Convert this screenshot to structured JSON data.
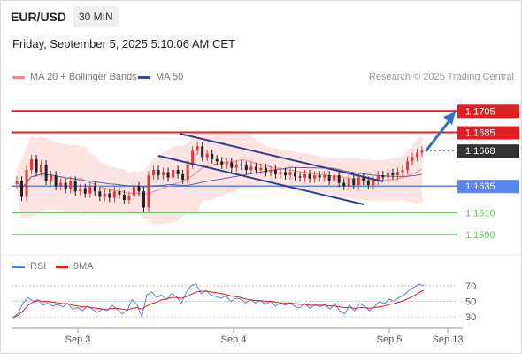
{
  "header": {
    "symbol": "EUR/USD",
    "timeframe": "30 MIN",
    "datetime": "Friday, September 5, 2025 5:10:06 AM CET"
  },
  "legend": {
    "ma20_label": "MA 20 + Bollinger Bands",
    "ma50_label": "MA 50",
    "credit": "Research © 2025 Trading Central",
    "rsi_label": "RSI",
    "rsi_ma_label": "9MA"
  },
  "colors": {
    "ma20": "#f28b82",
    "bb_fill": "#fde3e1",
    "ma50": "#3b4a9c",
    "resistance": "#e02020",
    "support": "#5b86f0",
    "pivot": "#6abf69",
    "candle_up": "#e03a3a",
    "candle_down": "#222222",
    "rsi": "#5b7fe0",
    "rsi_ma": "#e02020",
    "last_price_bg": "#333333",
    "arrow": "#2f6fd0",
    "channel": "#2d3f8f"
  },
  "chart_data": {
    "type": "candlestick",
    "price_axis": {
      "min": 1.1575,
      "max": 1.1725
    },
    "x_axis_labels": [
      "Sep 3",
      "Sep 4",
      "Sep 5",
      "Sep 13"
    ],
    "levels": [
      {
        "value": 1.1705,
        "label": "1.1705",
        "kind": "resistance"
      },
      {
        "value": 1.1685,
        "label": "1.1685",
        "kind": "resistance"
      },
      {
        "value": 1.1668,
        "label": "1.1668",
        "kind": "last"
      },
      {
        "value": 1.1635,
        "label": "1.1635",
        "kind": "support"
      },
      {
        "value": 1.161,
        "label": "1.1610",
        "kind": "pivot"
      },
      {
        "value": 1.159,
        "label": "1.1590",
        "kind": "pivot"
      }
    ],
    "close": [
      1.164,
      1.1625,
      1.165,
      1.166,
      1.1648,
      1.1655,
      1.164,
      1.1645,
      1.1635,
      1.1638,
      1.1632,
      1.164,
      1.163,
      1.1633,
      1.1628,
      1.1635,
      1.163,
      1.1625,
      1.1628,
      1.1624,
      1.163,
      1.1627,
      1.1622,
      1.1626,
      1.1635,
      1.163,
      1.1615,
      1.1645,
      1.165,
      1.1645,
      1.1648,
      1.1643,
      1.165,
      1.1646,
      1.1641,
      1.1655,
      1.1668,
      1.1672,
      1.1662,
      1.1665,
      1.166,
      1.1658,
      1.1655,
      1.1657,
      1.1652,
      1.1655,
      1.1654,
      1.165,
      1.1653,
      1.165,
      1.1652,
      1.1648,
      1.165,
      1.1646,
      1.1648,
      1.1645,
      1.1648,
      1.1644,
      1.1643,
      1.1646,
      1.1642,
      1.1645,
      1.1643,
      1.1645,
      1.164,
      1.1645,
      1.1638,
      1.1635,
      1.1642,
      1.1636,
      1.1643,
      1.164,
      1.1636,
      1.164,
      1.1645,
      1.1643,
      1.1647,
      1.1645,
      1.1648,
      1.165,
      1.1658,
      1.1662,
      1.1666,
      1.1668
    ],
    "rsi_axis": {
      "min": 20,
      "max": 80,
      "ticks": [
        70,
        50,
        30
      ]
    },
    "rsi": [
      28,
      35,
      48,
      55,
      50,
      52,
      45,
      48,
      44,
      46,
      43,
      47,
      40,
      42,
      38,
      44,
      40,
      36,
      40,
      38,
      45,
      40,
      34,
      38,
      52,
      46,
      30,
      58,
      62,
      55,
      58,
      52,
      60,
      56,
      48,
      62,
      70,
      72,
      60,
      64,
      58,
      56,
      54,
      57,
      50,
      54,
      53,
      48,
      52,
      48,
      51,
      46,
      50,
      44,
      48,
      45,
      48,
      43,
      42,
      47,
      41,
      46,
      43,
      46,
      40,
      47,
      38,
      34,
      45,
      38,
      47,
      44,
      38,
      43,
      50,
      47,
      53,
      50,
      55,
      58,
      64,
      68,
      72,
      70
    ],
    "rsi_ma": [
      30,
      32,
      38,
      45,
      49,
      51,
      50,
      50,
      49,
      48,
      47,
      47,
      45,
      44,
      43,
      43,
      42,
      41,
      40,
      40,
      41,
      41,
      40,
      39,
      41,
      42,
      40,
      44,
      47,
      49,
      52,
      53,
      55,
      55,
      54,
      56,
      59,
      62,
      63,
      63,
      62,
      61,
      60,
      59,
      57,
      56,
      55,
      53,
      52,
      51,
      51,
      50,
      50,
      49,
      48,
      48,
      48,
      47,
      46,
      46,
      45,
      45,
      45,
      45,
      44,
      44,
      43,
      42,
      42,
      41,
      42,
      42,
      41,
      42,
      43,
      44,
      46,
      47,
      49,
      51,
      54,
      57,
      61,
      64
    ]
  }
}
